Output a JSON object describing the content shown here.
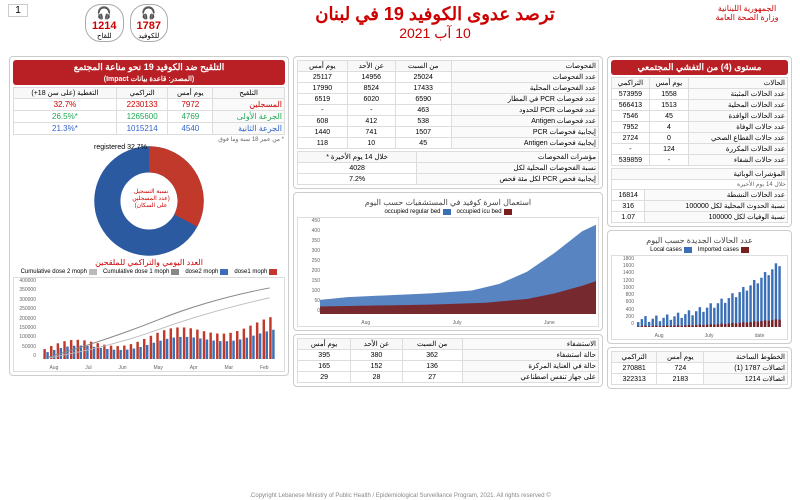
{
  "header": {
    "logo_line1": "الجمهورية اللبنانية",
    "logo_line2": "وزارة الصحة العامة",
    "title": "ترصد عدوى الكوفيد 19 في لبنان",
    "date": "10 آب 2021",
    "hotline1_num": "1787",
    "hotline1_label": "للكوفيد",
    "hotline2_num": "1214",
    "hotline2_label": "للقاح",
    "page_num": "1"
  },
  "level": {
    "title": "مستوى (4) من التفشي المجتمعي"
  },
  "cases": {
    "header": "الحالات",
    "cols": [
      "يوم أمس",
      "التراكمي"
    ],
    "rows": [
      {
        "label": "عدد الحالات المثبتة",
        "day": "1558",
        "cum": "573959"
      },
      {
        "label": "عدد الحالات المحلية",
        "day": "1513",
        "cum": "566413"
      },
      {
        "label": "عدد الحالات الوافدة",
        "day": "45",
        "cum": "7546"
      },
      {
        "label": "عدد حالات الوفاة",
        "day": "4",
        "cum": "7952"
      },
      {
        "label": "عدد حالات القطاع الصحي",
        "day": "0",
        "cum": "2724"
      },
      {
        "label": "عدد الحالات المكررة",
        "day": "124",
        "cum": "-"
      },
      {
        "label": "عدد حالات الشفاء",
        "day": "-",
        "cum": "539859"
      }
    ],
    "indicators_header": "المؤشرات الوبائية",
    "indicators_sub": "خلال 14 يوم الأخيرة",
    "ind_rows": [
      {
        "label": "عدد الحالات النشطة",
        "val": "16814"
      },
      {
        "label": "نسبة الحدوث المحلية لكل 100000",
        "val": "316"
      },
      {
        "label": "نسبة الوفيات لكل 100000",
        "val": "1.07"
      }
    ]
  },
  "tests": {
    "header": "الفحوصات",
    "cols": [
      "من السبت",
      "عن الأحد",
      "يوم أمس"
    ],
    "rows": [
      {
        "label": "عدد الفحوصات",
        "v": [
          "25024",
          "14956",
          "25117"
        ]
      },
      {
        "label": "عدد الفحوصات المحلية",
        "v": [
          "17433",
          "8524",
          "17990"
        ]
      },
      {
        "label": "عدد فحوصات PCR في المطار",
        "v": [
          "6590",
          "6020",
          "6519"
        ]
      },
      {
        "label": "عدد فحوصات PCR للحدود",
        "v": [
          "463",
          "-",
          "-"
        ]
      },
      {
        "label": "عدد فحوصات Antigen",
        "v": [
          "538",
          "412",
          "608"
        ]
      },
      {
        "label": "إيجابية فحوصات PCR",
        "v": [
          "1507",
          "741",
          "1440"
        ]
      },
      {
        "label": "إيجابية فحوصات Antigen",
        "v": [
          "45",
          "10",
          "118"
        ]
      }
    ],
    "ind_header": "مؤشرات الفحوصات",
    "ind_sub": "خلال 14 يوم الأخيرة *",
    "ind_rows": [
      {
        "label": "نسبة الفحوصات المحلية لكل",
        "val": "4028"
      },
      {
        "label": "إيجابية فحص PCR لكل مئة فحص",
        "val": "7.2%"
      }
    ]
  },
  "hosp": {
    "title": "استعمال اسرة كوفيد في المستشفيات حسب اليوم",
    "legend": [
      {
        "label": "occupied icu bed",
        "color": "#7a1f1f"
      },
      {
        "label": "occupied regular bed",
        "color": "#3b6fb6"
      }
    ],
    "y_label": "number of occupied icu beds",
    "y_ticks": [
      "450",
      "400",
      "350",
      "300",
      "250",
      "200",
      "150",
      "100",
      "50",
      "0"
    ],
    "x_ticks": [
      "June",
      "July",
      "Aug"
    ]
  },
  "recovery": {
    "header": "الاستشفاء",
    "cols": [
      "من السبت",
      "عن الأحد",
      "يوم أمس"
    ],
    "rows": [
      {
        "label": "حالة استشفاء",
        "v": [
          "362",
          "380",
          "395"
        ]
      },
      {
        "label": "حالة في العناية المركزة",
        "v": [
          "136",
          "152",
          "165"
        ]
      },
      {
        "label": "على جهاز تنفس اصطناعي",
        "v": [
          "27",
          "28",
          "29"
        ]
      }
    ]
  },
  "new_cases_chart": {
    "title": "عدد الحالات الجديدة حسب اليوم",
    "legend": [
      {
        "label": "Imported cases",
        "color": "#7a1f1f"
      },
      {
        "label": "Local cases",
        "color": "#3b6fb6"
      }
    ],
    "y_ticks": [
      "1800",
      "1600",
      "1400",
      "1200",
      "1000",
      "800",
      "600",
      "400",
      "200",
      "0"
    ],
    "x_ticks": [
      "date",
      "July",
      "Aug"
    ]
  },
  "hotlines_table": {
    "header": "الخطوط الساخنة",
    "cols": [
      "يوم أمس",
      "التراكمي"
    ],
    "rows": [
      {
        "label": "اتصالات 1787 (1)",
        "v": [
          "724",
          "270881"
        ]
      },
      {
        "label": "اتصالات 1214",
        "v": [
          "2183",
          "322313"
        ]
      }
    ]
  },
  "vax": {
    "title": "التلقيح ضد الكوفيد 19 نحو مناعة المجتمع",
    "subtitle": "(المصدر: قاعدة بيانات Impact)",
    "cols": [
      "التلقيح",
      "يوم أمس",
      "التراكمي",
      "التغطية (على سن 18+)"
    ],
    "rows": [
      {
        "cls": "vax-row-reg",
        "label": "المسجلين",
        "day": "7972",
        "cum": "2230133",
        "cov": "32.7%"
      },
      {
        "cls": "vax-row-d1",
        "label": "الجرعة الأولى",
        "day": "4769",
        "cum": "1265600",
        "cov": "*26.5%"
      },
      {
        "cls": "vax-row-d2",
        "label": "الجرعة الثانية",
        "day": "4540",
        "cum": "1015214",
        "cov": "*21.3%"
      }
    ],
    "note": "* من عمر 18 سنة وما فوق"
  },
  "donut": {
    "reg_pct": 32.7,
    "reg_label": "registered 32.7%",
    "center_label": "نسبة التسجيل (عدد المسجلين على السكان)",
    "reg_color": "#c0392b",
    "rest_color": "#2c5aa0"
  },
  "vax_chart": {
    "title": "العدد اليومي والتراكمي للملقحين",
    "legend": [
      {
        "label": "dose1 moph",
        "color": "#c0392b"
      },
      {
        "label": "dose2 moph",
        "color": "#3b6fb6"
      },
      {
        "label": "Cumulative dose 1 moph",
        "color": "#888"
      },
      {
        "label": "Cumulative dose 2 moph",
        "color": "#bbb"
      }
    ],
    "y_ticks": [
      "400000",
      "350000",
      "300000",
      "250000",
      "200000",
      "150000",
      "100000",
      "50000",
      "0"
    ],
    "x_ticks": [
      "Feb",
      "Mar",
      "Apr",
      "May",
      "Jun",
      "Jul",
      "Aug"
    ]
  },
  "footer": "© Copyright Lebanese Ministry of Public Health / Epidemiological Surveillance Program, 2021. All rights reserved."
}
